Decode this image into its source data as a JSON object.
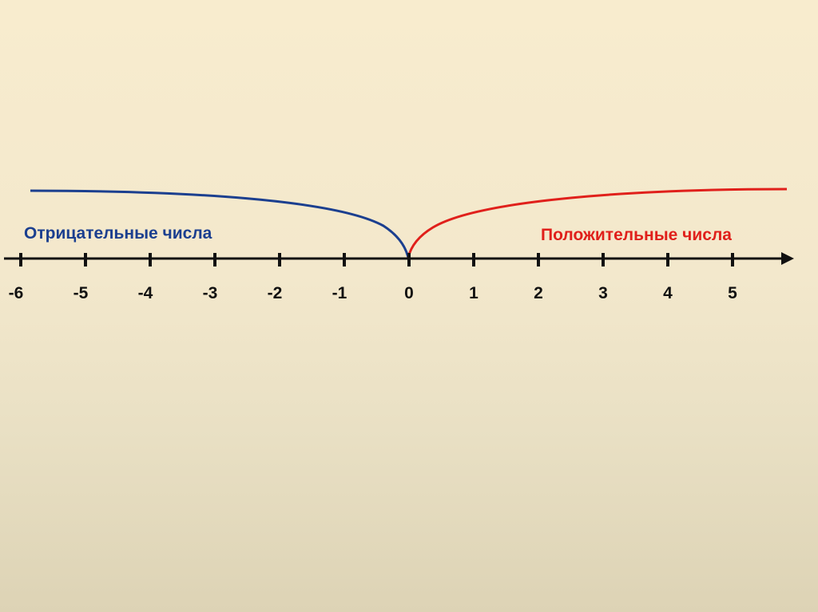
{
  "labels": {
    "negative": "Отрицательные числа",
    "positive": "Положительные числа"
  },
  "number_line": {
    "ticks": [
      "-6",
      "-5",
      "-4",
      "-3",
      "-2",
      "-1",
      "0",
      "1",
      "2",
      "3",
      "4",
      "5"
    ]
  },
  "colors": {
    "background": "#f6ebcd",
    "negative_curve": "#1b3f8f",
    "positive_curve": "#e0201b",
    "axis": "#111111"
  }
}
